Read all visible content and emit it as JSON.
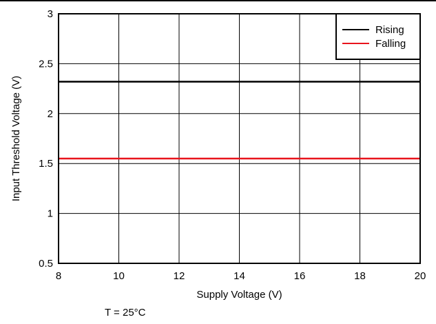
{
  "chart_data": {
    "type": "line",
    "xlabel": "Supply Voltage (V)",
    "ylabel": "Input Threshold Voltage (V)",
    "xlim": [
      8,
      20
    ],
    "ylim": [
      0.5,
      3
    ],
    "x_ticks": [
      "8",
      "10",
      "12",
      "14",
      "16",
      "18",
      "20"
    ],
    "y_ticks": [
      "0.5",
      "1",
      "1.5",
      "2",
      "2.5",
      "3"
    ],
    "grid": true,
    "legend_position": "top-right",
    "series": [
      {
        "name": "Rising",
        "color": "#000000",
        "x": [
          8,
          20
        ],
        "y": [
          2.32,
          2.32
        ]
      },
      {
        "name": "Falling",
        "color": "#e8141c",
        "x": [
          8,
          20
        ],
        "y": [
          1.55,
          1.55
        ]
      }
    ],
    "annotation": "T = 25°C"
  }
}
